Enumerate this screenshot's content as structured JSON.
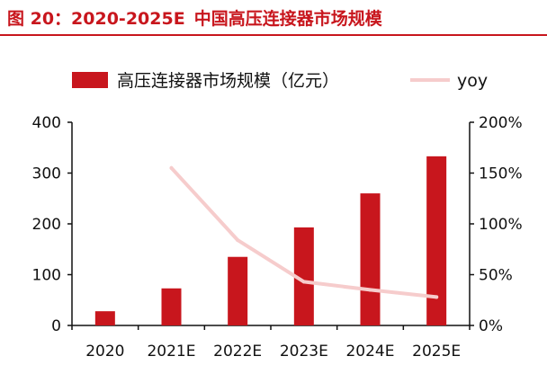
{
  "title": {
    "figure_label": "图 20：2020-2025E",
    "text": "中国高压连接器市场规模"
  },
  "colors": {
    "bar": "#c8161d",
    "line": "#f6cccc",
    "title": "#c8161d"
  },
  "chart_data": {
    "type": "bar",
    "categories": [
      "2020",
      "2021E",
      "2022E",
      "2023E",
      "2024E",
      "2025E"
    ],
    "series": [
      {
        "name": "高压连接器市场规模（亿元）",
        "type": "bar",
        "axis": "left",
        "values": [
          28,
          73,
          135,
          193,
          260,
          333
        ]
      },
      {
        "name": "yoy",
        "type": "line",
        "axis": "right",
        "values": [
          null,
          1.55,
          0.84,
          0.43,
          0.35,
          0.28
        ]
      }
    ],
    "y_left": {
      "ylim": [
        0,
        400
      ],
      "ticks": [
        "0",
        "100",
        "200",
        "300",
        "400"
      ]
    },
    "y_right": {
      "ylim": [
        0,
        2.0
      ],
      "ticks": [
        "0%",
        "50%",
        "100%",
        "150%",
        "200%"
      ]
    },
    "legend": "top",
    "grid": false
  }
}
